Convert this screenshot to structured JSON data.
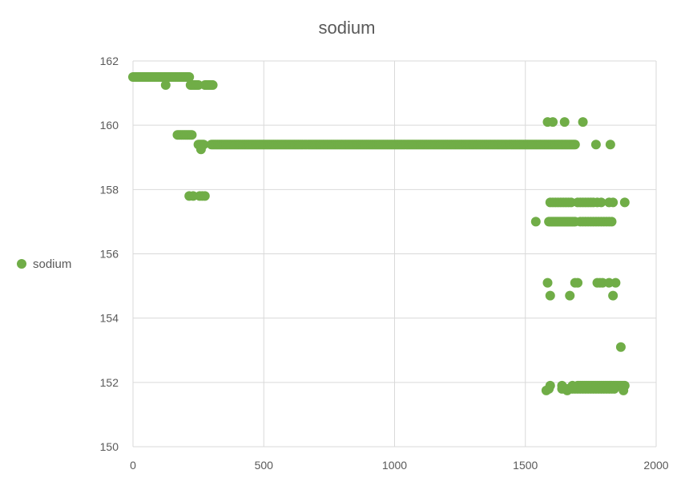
{
  "chart_data": {
    "type": "scatter",
    "title": "sodium",
    "xlabel": "",
    "ylabel": "",
    "xlim": [
      0,
      2000
    ],
    "ylim": [
      150,
      162
    ],
    "x_ticks": [
      0,
      500,
      1000,
      1500,
      2000
    ],
    "y_ticks": [
      150,
      152,
      154,
      156,
      158,
      160,
      162
    ],
    "grid": true,
    "legend": {
      "position": "left",
      "entries": [
        "sodium"
      ]
    },
    "series": [
      {
        "name": "sodium",
        "color": "#70ad47",
        "segments": [
          {
            "x_start": 0,
            "x_end": 215,
            "step": 5,
            "y": 161.5
          },
          {
            "x_start": 220,
            "x_end": 250,
            "step": 5,
            "y": 161.25
          },
          {
            "x_start": 275,
            "x_end": 305,
            "step": 5,
            "y": 161.25
          },
          {
            "x_start": 170,
            "x_end": 225,
            "step": 5,
            "y": 159.7
          },
          {
            "x_start": 250,
            "x_end": 270,
            "step": 5,
            "y": 159.4
          },
          {
            "x_start": 300,
            "x_end": 1690,
            "step": 5,
            "y": 159.4
          },
          {
            "x_start": 1590,
            "x_end": 1690,
            "step": 5,
            "y": 157.0
          },
          {
            "x_start": 1595,
            "x_end": 1675,
            "step": 10,
            "y": 157.6
          },
          {
            "x_start": 1700,
            "x_end": 1760,
            "step": 10,
            "y": 157.6
          },
          {
            "x_start": 1710,
            "x_end": 1830,
            "step": 10,
            "y": 157.0
          },
          {
            "x_start": 1700,
            "x_end": 1880,
            "step": 5,
            "y": 151.9
          },
          {
            "x_start": 1640,
            "x_end": 1840,
            "step": 10,
            "y": 151.8
          }
        ],
        "points": [
          {
            "x": 125,
            "y": 161.25
          },
          {
            "x": 260,
            "y": 159.25
          },
          {
            "x": 215,
            "y": 157.8
          },
          {
            "x": 230,
            "y": 157.8
          },
          {
            "x": 255,
            "y": 157.8
          },
          {
            "x": 265,
            "y": 157.8
          },
          {
            "x": 275,
            "y": 157.8
          },
          {
            "x": 1585,
            "y": 160.1
          },
          {
            "x": 1605,
            "y": 160.1
          },
          {
            "x": 1650,
            "y": 160.1
          },
          {
            "x": 1720,
            "y": 160.1
          },
          {
            "x": 1770,
            "y": 159.4
          },
          {
            "x": 1825,
            "y": 159.4
          },
          {
            "x": 1775,
            "y": 157.6
          },
          {
            "x": 1790,
            "y": 157.6
          },
          {
            "x": 1820,
            "y": 157.6
          },
          {
            "x": 1835,
            "y": 157.6
          },
          {
            "x": 1880,
            "y": 157.6
          },
          {
            "x": 1540,
            "y": 157.0
          },
          {
            "x": 1585,
            "y": 155.1
          },
          {
            "x": 1690,
            "y": 155.1
          },
          {
            "x": 1700,
            "y": 155.1
          },
          {
            "x": 1775,
            "y": 155.1
          },
          {
            "x": 1785,
            "y": 155.1
          },
          {
            "x": 1795,
            "y": 155.1
          },
          {
            "x": 1820,
            "y": 155.1
          },
          {
            "x": 1845,
            "y": 155.1
          },
          {
            "x": 1595,
            "y": 154.7
          },
          {
            "x": 1670,
            "y": 154.7
          },
          {
            "x": 1835,
            "y": 154.7
          },
          {
            "x": 1865,
            "y": 153.1
          },
          {
            "x": 1580,
            "y": 151.75
          },
          {
            "x": 1590,
            "y": 151.8
          },
          {
            "x": 1595,
            "y": 151.9
          },
          {
            "x": 1640,
            "y": 151.9
          },
          {
            "x": 1660,
            "y": 151.75
          },
          {
            "x": 1680,
            "y": 151.9
          },
          {
            "x": 1875,
            "y": 151.75
          }
        ]
      }
    ]
  }
}
